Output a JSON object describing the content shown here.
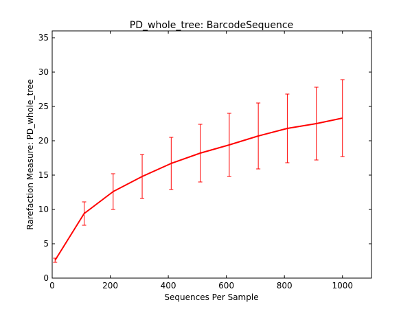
{
  "chart_data": {
    "type": "line",
    "title": "PD_whole_tree: BarcodeSequence",
    "xlabel": "Sequences Per Sample",
    "ylabel": "Rarefaction Measure: PD_whole_tree",
    "xlim": [
      0,
      1100
    ],
    "ylim": [
      0,
      36
    ],
    "x_ticks": [
      0,
      200,
      400,
      600,
      800,
      1000
    ],
    "y_ticks": [
      0,
      5,
      10,
      15,
      20,
      25,
      30,
      35
    ],
    "grid": false,
    "line_color": "#ff0000",
    "series": [
      {
        "x": [
          10,
          110,
          210,
          310,
          410,
          510,
          610,
          710,
          810,
          910,
          1000
        ],
        "values": [
          2.6,
          9.4,
          12.6,
          14.8,
          16.7,
          18.2,
          19.4,
          20.7,
          21.8,
          22.5,
          23.3
        ],
        "error": [
          0.3,
          1.7,
          2.6,
          3.2,
          3.8,
          4.2,
          4.6,
          4.8,
          5.0,
          5.3,
          5.6
        ]
      }
    ]
  }
}
